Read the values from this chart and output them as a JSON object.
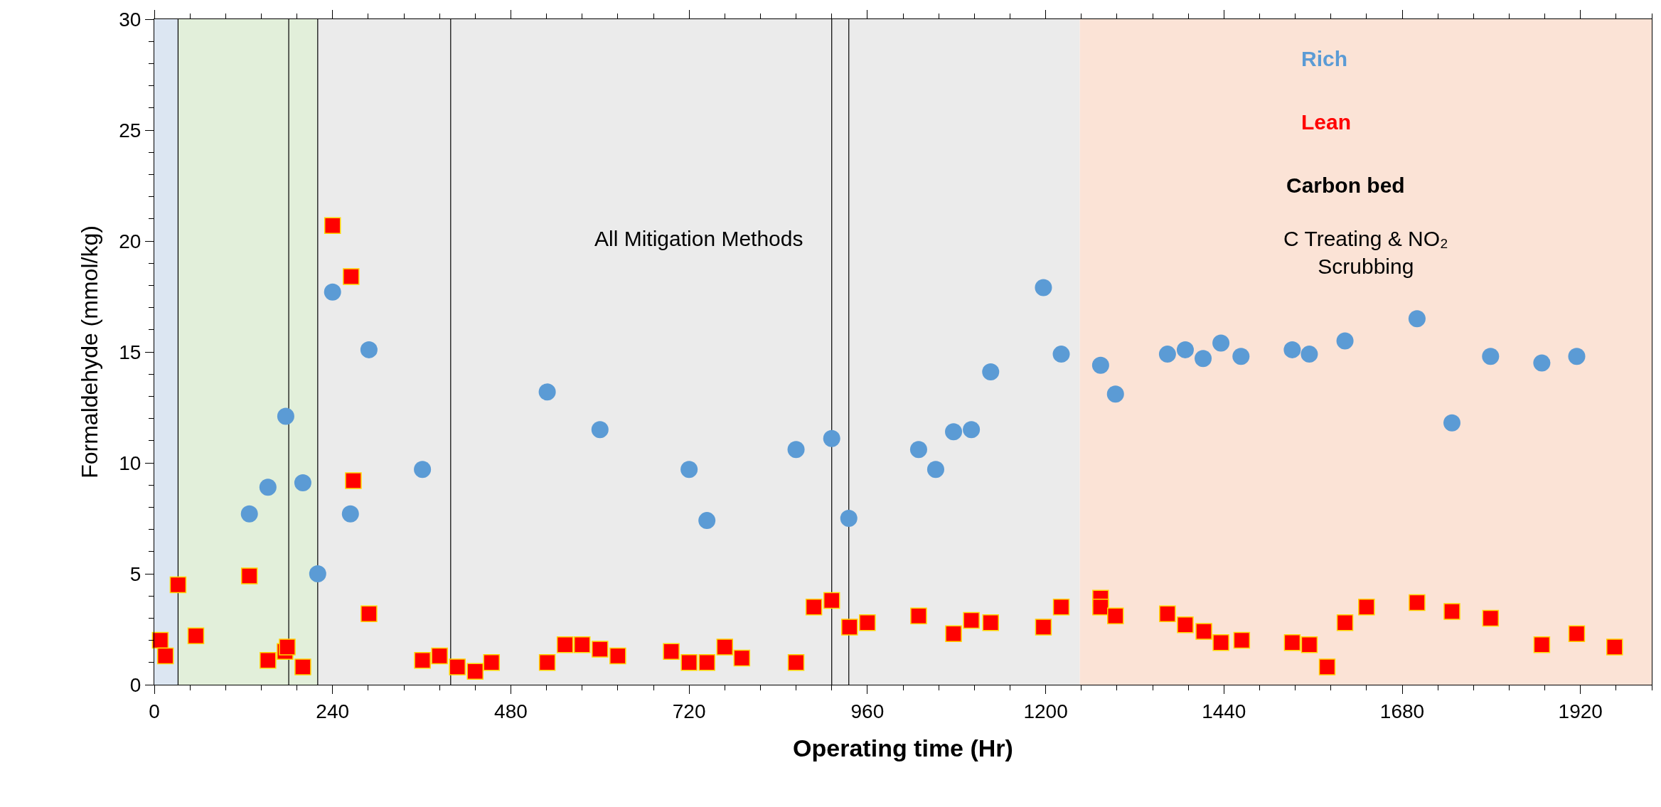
{
  "chart_data": {
    "type": "scatter",
    "xlabel": "Operating time (Hr)",
    "ylabel": "Formaldehyde (mmol/kg)",
    "xlim": [
      0,
      2016
    ],
    "xticks": [
      0,
      240,
      480,
      720,
      960,
      1200,
      1440,
      1680,
      1920
    ],
    "ylim": [
      0,
      30
    ],
    "yticks": [
      0,
      5,
      10,
      15,
      20,
      25,
      30
    ],
    "grid": false,
    "legend": false,
    "series": [
      {
        "name": "Rich",
        "color": "#5b9bd5",
        "marker": "circle",
        "x": [
          128,
          153,
          177,
          200,
          220,
          240,
          264,
          289,
          361,
          529,
          600,
          720,
          744,
          864,
          912,
          935,
          1029,
          1052,
          1076,
          1100,
          1126,
          1197,
          1221,
          1274,
          1294,
          1364,
          1388,
          1412,
          1436,
          1463,
          1532,
          1555,
          1603,
          1700,
          1747,
          1799,
          1868,
          1915
        ],
        "values": [
          7.7,
          8.9,
          12.1,
          9.1,
          5.0,
          17.7,
          7.7,
          15.1,
          9.7,
          13.2,
          11.5,
          9.7,
          7.4,
          10.6,
          11.1,
          7.5,
          10.6,
          9.7,
          11.4,
          11.5,
          14.1,
          17.9,
          14.9,
          14.4,
          13.1,
          14.9,
          15.1,
          14.7,
          15.4,
          14.8,
          15.1,
          14.9,
          15.5,
          16.5,
          11.8,
          14.8,
          14.5,
          14.8
        ]
      },
      {
        "name": "Lean",
        "color": "#ff0000",
        "marker": "square",
        "x": [
          8,
          15,
          32,
          56,
          128,
          153,
          176,
          179,
          200,
          240,
          265,
          268,
          289,
          361,
          384,
          408,
          432,
          454,
          529,
          553,
          576,
          600,
          624,
          696,
          720,
          744,
          768,
          791,
          864,
          888,
          912,
          936,
          960,
          1029,
          1076,
          1100,
          1126,
          1197,
          1221,
          1274,
          1274,
          1294,
          1364,
          1388,
          1413,
          1436,
          1464,
          1532,
          1555,
          1579,
          1603,
          1632,
          1700,
          1747,
          1799,
          1868,
          1915,
          1966
        ],
        "values": [
          2.0,
          1.3,
          4.5,
          2.2,
          4.9,
          1.1,
          1.5,
          1.7,
          0.8,
          20.7,
          18.4,
          9.2,
          3.2,
          1.1,
          1.3,
          0.8,
          0.6,
          1.0,
          1.0,
          1.8,
          1.8,
          1.6,
          1.3,
          1.5,
          1.0,
          1.0,
          1.7,
          1.2,
          1.0,
          3.5,
          3.8,
          2.6,
          2.8,
          3.1,
          2.3,
          2.9,
          2.8,
          2.6,
          3.5,
          3.9,
          3.5,
          3.1,
          3.2,
          2.7,
          2.4,
          1.9,
          2.0,
          1.9,
          1.8,
          0.8,
          2.8,
          3.5,
          3.7,
          3.3,
          3.0,
          1.8,
          2.3,
          1.7
        ]
      }
    ],
    "bands": [
      {
        "axis": "x",
        "from": 0,
        "to": 32,
        "color": "#dce6f2"
      },
      {
        "axis": "x",
        "from": 32,
        "to": 220,
        "color": "#e2efda"
      },
      {
        "axis": "x",
        "from": 220,
        "to": 1246,
        "color": "#ebebeb",
        "label": "All Mitigation Methods"
      },
      {
        "axis": "x",
        "from": 1246,
        "to": 2016,
        "color": "#fbe3d6",
        "label": "C Treating & NO₂ Scrubbing"
      }
    ],
    "ref_lines": [
      {
        "axis": "x",
        "value": 32,
        "color": "#000000"
      },
      {
        "axis": "x",
        "value": 181,
        "color": "#000000"
      },
      {
        "axis": "x",
        "value": 220,
        "color": "#000000"
      },
      {
        "axis": "x",
        "value": 399,
        "color": "#000000"
      },
      {
        "axis": "x",
        "value": 912,
        "color": "#000000"
      },
      {
        "axis": "x",
        "value": 935,
        "color": "#000000"
      }
    ],
    "annotations": [
      "Carbon bed"
    ]
  }
}
